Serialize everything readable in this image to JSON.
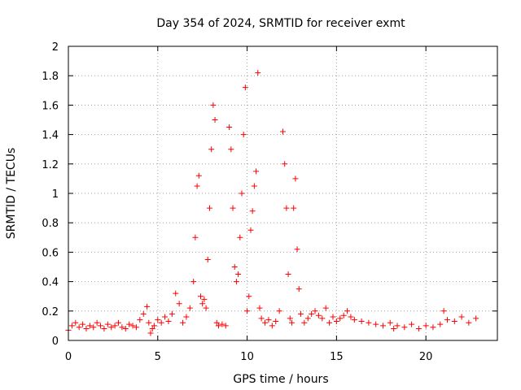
{
  "chart_data": {
    "type": "scatter",
    "title": "Day 354 of 2024, SRMTID for receiver exmt",
    "xlabel": "GPS time / hours",
    "ylabel": "SRMTID / TECUs",
    "xlim": [
      0,
      24
    ],
    "ylim": [
      0,
      2
    ],
    "xticks": [
      0,
      5,
      10,
      15,
      20
    ],
    "yticks": [
      0,
      0.2,
      0.4,
      0.6,
      0.8,
      1,
      1.2,
      1.4,
      1.6,
      1.8,
      2
    ],
    "xtick_labels": [
      "0",
      "5",
      "10",
      "15",
      "20"
    ],
    "ytick_labels": [
      "0",
      "0.2",
      "0.4",
      "0.6",
      "0.8",
      "1",
      "1.2",
      "1.4",
      "1.6",
      "1.8",
      "2"
    ],
    "grid": true,
    "marker": "+",
    "color": "#ff0000",
    "series": [
      {
        "name": "SRMTID",
        "x": [
          0.0,
          0.2,
          0.4,
          0.6,
          0.8,
          1.0,
          1.2,
          1.4,
          1.6,
          1.8,
          2.0,
          2.2,
          2.4,
          2.6,
          2.8,
          3.0,
          3.2,
          3.4,
          3.6,
          3.8,
          4.0,
          4.2,
          4.4,
          4.5,
          4.6,
          4.7,
          4.8,
          5.0,
          5.2,
          5.4,
          5.6,
          5.8,
          6.0,
          6.2,
          6.4,
          6.6,
          6.8,
          7.0,
          7.1,
          7.2,
          7.3,
          7.4,
          7.5,
          7.6,
          7.7,
          7.8,
          7.9,
          8.0,
          8.1,
          8.2,
          8.3,
          8.4,
          8.6,
          8.8,
          9.0,
          9.1,
          9.2,
          9.3,
          9.4,
          9.5,
          9.6,
          9.7,
          9.8,
          9.9,
          10.0,
          10.1,
          10.2,
          10.3,
          10.4,
          10.5,
          10.6,
          10.7,
          10.8,
          11.0,
          11.2,
          11.4,
          11.6,
          11.8,
          12.0,
          12.1,
          12.2,
          12.3,
          12.4,
          12.5,
          12.6,
          12.7,
          12.8,
          12.9,
          13.0,
          13.2,
          13.4,
          13.6,
          13.8,
          14.0,
          14.2,
          14.4,
          14.6,
          14.8,
          15.0,
          15.2,
          15.4,
          15.6,
          15.8,
          16.0,
          16.4,
          16.8,
          17.2,
          17.6,
          18.0,
          18.2,
          18.4,
          18.8,
          19.2,
          19.6,
          20.0,
          20.4,
          20.8,
          21.0,
          21.2,
          21.6,
          22.0,
          22.4,
          22.8
        ],
        "y": [
          0.07,
          0.1,
          0.12,
          0.09,
          0.11,
          0.08,
          0.1,
          0.09,
          0.12,
          0.1,
          0.08,
          0.11,
          0.09,
          0.1,
          0.12,
          0.09,
          0.08,
          0.11,
          0.1,
          0.09,
          0.14,
          0.18,
          0.23,
          0.12,
          0.05,
          0.08,
          0.1,
          0.14,
          0.12,
          0.16,
          0.13,
          0.18,
          0.32,
          0.25,
          0.12,
          0.16,
          0.22,
          0.4,
          0.7,
          1.05,
          1.12,
          0.3,
          0.25,
          0.28,
          0.22,
          0.55,
          0.9,
          1.3,
          1.6,
          1.5,
          0.12,
          0.1,
          0.11,
          0.1,
          1.45,
          1.3,
          0.9,
          0.5,
          0.4,
          0.45,
          0.7,
          1.0,
          1.4,
          1.72,
          0.2,
          0.3,
          0.75,
          0.88,
          1.05,
          1.15,
          1.82,
          0.22,
          0.15,
          0.12,
          0.14,
          0.1,
          0.13,
          0.2,
          1.42,
          1.2,
          0.9,
          0.45,
          0.15,
          0.12,
          0.9,
          1.1,
          0.62,
          0.35,
          0.18,
          0.12,
          0.15,
          0.18,
          0.2,
          0.17,
          0.15,
          0.22,
          0.12,
          0.16,
          0.13,
          0.15,
          0.17,
          0.2,
          0.16,
          0.14,
          0.13,
          0.12,
          0.11,
          0.1,
          0.12,
          0.08,
          0.1,
          0.09,
          0.11,
          0.08,
          0.1,
          0.09,
          0.11,
          0.2,
          0.14,
          0.13,
          0.16,
          0.12,
          0.15
        ]
      }
    ]
  }
}
